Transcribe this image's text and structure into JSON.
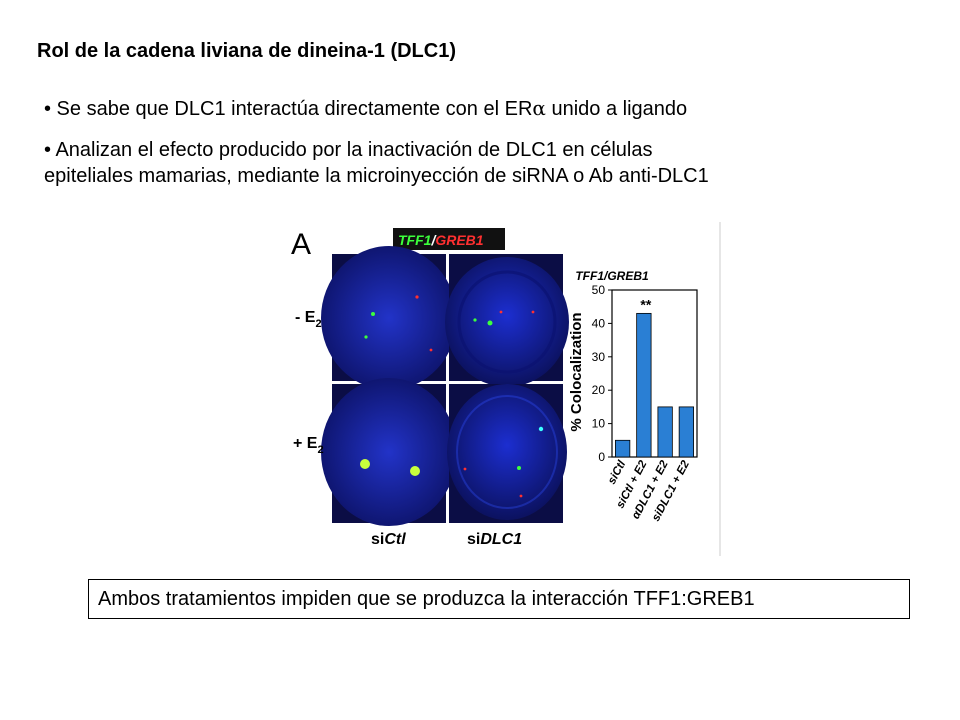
{
  "slide": {
    "title": "Rol de la cadena liviana de dineina-1 (DLC1)",
    "bullets": [
      {
        "prefix": "• Se sabe que DLC1 interactúa directamente con el ER",
        "symbol": "α",
        "suffix": " unido a ligando"
      },
      {
        "line1": "• Analizan el efecto producido por la inactivación de DLC1 en células",
        "line2": "epiteliales mamarias, mediante la microinyección de siRNA o Ab anti-DLC1"
      }
    ],
    "conclusion": "Ambos tratamientos impiden que se produzca la interacción TFF1:GREB1"
  },
  "figure": {
    "panel_letter": "A",
    "legend": {
      "green": "TFF1",
      "separator": "/",
      "red": "GREB1"
    },
    "rows": [
      {
        "sign": "- E",
        "sub": "2"
      },
      {
        "sign": "+ E",
        "sub": "2"
      }
    ],
    "columns": [
      {
        "prefix": "si",
        "italic": "Ctl"
      },
      {
        "prefix": "si",
        "italic": "DLC1"
      }
    ],
    "colors": {
      "nucleus": "#1a2bb8",
      "background": "#0a0a2a",
      "green_spot": "#3cff3c",
      "red_spot": "#ff3030",
      "bar": "#2a7fd4"
    }
  },
  "chart_data": {
    "type": "bar",
    "title": "TFF1/GREB1",
    "ylabel": "% Colocalization",
    "ylim": [
      0,
      50
    ],
    "yticks": [
      0,
      10,
      20,
      30,
      40,
      50
    ],
    "categories": [
      "siCtl",
      "siCtl + E2",
      "αDLC1 + E2",
      "siDLC1 + E2"
    ],
    "values": [
      5,
      43,
      15,
      15
    ],
    "annotation": {
      "text": "**",
      "category": "siCtl + E2"
    },
    "grid": false
  }
}
